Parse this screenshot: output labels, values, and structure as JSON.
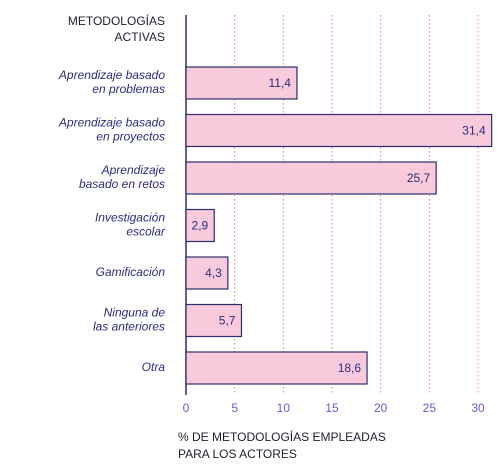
{
  "chart_data": {
    "type": "barh",
    "ylabel": [
      "METODOLOGÍAS",
      "ACTIVAS"
    ],
    "xlabel": [
      "% DE METODOLOGÍAS EMPLEADAS",
      "PARA LOS ACTORES"
    ],
    "categories": [
      [
        "Aprendizaje basado",
        "en problemas"
      ],
      [
        "Aprendizaje basado",
        "en proyectos"
      ],
      [
        "Aprendizaje",
        "basado en retos"
      ],
      [
        "Investigación",
        "escolar"
      ],
      [
        "Gamificación"
      ],
      [
        "Ninguna de",
        "las anteriores"
      ],
      [
        "Otra"
      ]
    ],
    "values": [
      11.4,
      31.4,
      25.7,
      2.9,
      4.3,
      5.7,
      18.6
    ],
    "value_labels": [
      "11,4",
      "31,4",
      "25,7",
      "2,9",
      "4,3",
      "5,7",
      "18,6"
    ],
    "color": "#f9c9dc",
    "edge_color": "#2b2d6e",
    "grid_color": "#f08a5d",
    "xlim": [
      0,
      32
    ],
    "xticks": [
      0,
      5,
      10,
      15,
      20,
      25,
      30
    ],
    "grid": true
  }
}
